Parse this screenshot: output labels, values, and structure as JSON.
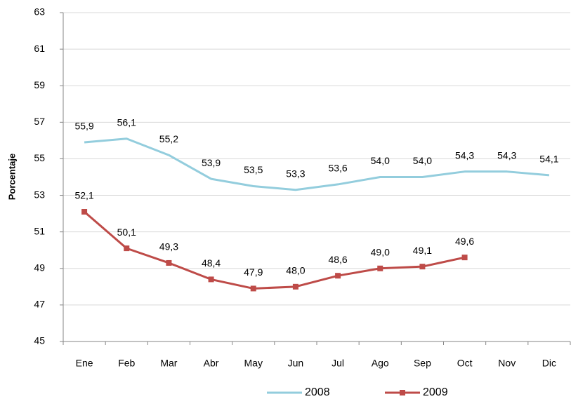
{
  "chart_data": {
    "type": "line",
    "y_label": "Porcentaje",
    "categories": [
      "Ene",
      "Feb",
      "Mar",
      "Abr",
      "May",
      "Jun",
      "Jul",
      "Ago",
      "Sep",
      "Oct",
      "Nov",
      "Dic"
    ],
    "series": [
      {
        "name": "2008",
        "color": "#93cddd",
        "marker": false,
        "values": [
          55.9,
          56.1,
          55.2,
          53.9,
          53.5,
          53.3,
          53.6,
          54.0,
          54.0,
          54.3,
          54.3,
          54.1
        ],
        "value_labels": [
          "55,9",
          "56,1",
          "55,2",
          "53,9",
          "53,5",
          "53,3",
          "53,6",
          "54,0",
          "54,0",
          "54,3",
          "54,3",
          "54,1"
        ]
      },
      {
        "name": "2009",
        "color": "#be4b48",
        "marker": true,
        "values": [
          52.1,
          50.1,
          49.3,
          48.4,
          47.9,
          48.0,
          48.6,
          49.0,
          49.1,
          49.6,
          null,
          null
        ],
        "value_labels": [
          "52,1",
          "50,1",
          "49,3",
          "48,4",
          "47,9",
          "48,0",
          "48,6",
          "49,0",
          "49,1",
          "49,6",
          null,
          null
        ]
      }
    ],
    "ylim": [
      45,
      63
    ],
    "yticks": [
      45,
      47,
      49,
      51,
      53,
      55,
      57,
      59,
      61,
      63
    ],
    "grid": true,
    "legend": "bottom"
  }
}
